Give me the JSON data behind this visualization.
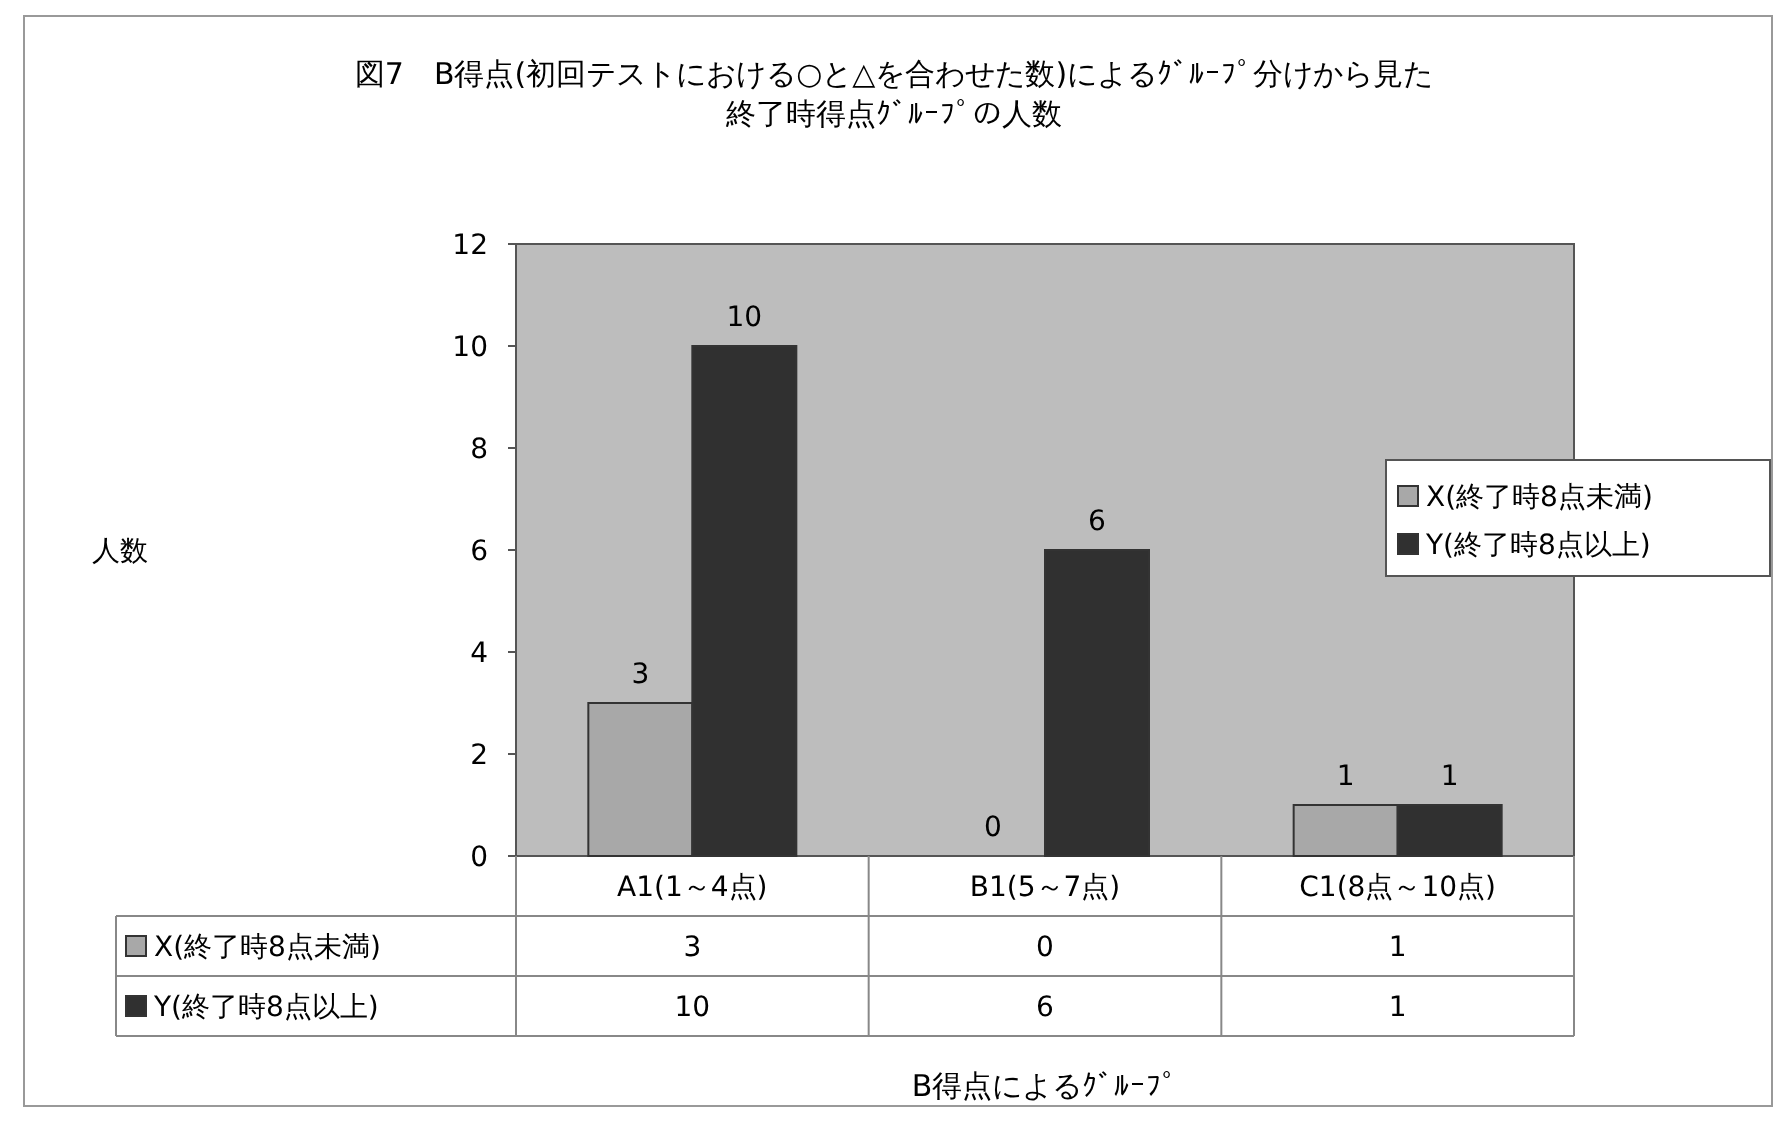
{
  "chart_data": {
    "type": "bar",
    "title": "図7　B得点(初回テストにおける○と△を合わせた数)によるｸﾞﾙｰﾌﾟ分けから見た",
    "subtitle": "終了時得点ｸﾞﾙｰﾌﾟの人数",
    "annotations": [
      "人数",
      "B得点によるｸﾞﾙｰﾌﾟ",
      {
        "text": "3",
        "x": "A1(1～4点)",
        "y": 3
      },
      {
        "text": "10",
        "x": "A1(1～4点)",
        "y": 10
      },
      {
        "text": "0",
        "x": "B1(5～7点)",
        "y": 0
      },
      {
        "text": "6",
        "x": "B1(5～7点)",
        "y": 6
      },
      {
        "text": "1",
        "x": "C1(8点～10点)",
        "y": 1
      },
      {
        "text": "1",
        "x": "C1(8点～10点)",
        "y": 1
      }
    ],
    "categories": [
      "A1(1～4点)",
      "B1(5～7点)",
      "C1(8点～10点)"
    ],
    "series": [
      {
        "name": "X(終了時8点未満)",
        "color": "#a8a8a8",
        "values": [
          3,
          0,
          1
        ]
      },
      {
        "name": "Y(終了時8点以上)",
        "color": "#303030",
        "values": [
          10,
          6,
          1
        ]
      }
    ],
    "ylim": [
      0,
      12
    ],
    "yticks": [
      0,
      2,
      4,
      6,
      8,
      10,
      12
    ],
    "grid": false,
    "legend": "right",
    "data_labels": true
  }
}
